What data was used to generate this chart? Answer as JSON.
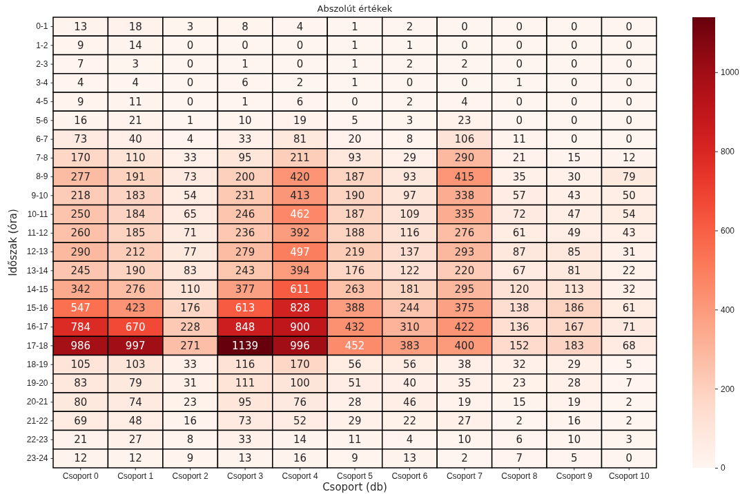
{
  "chart_data": {
    "type": "heatmap",
    "title": "Abszolút értékek",
    "xlabel": "Csoport (db)",
    "ylabel": "Időszak (óra)",
    "categories": [
      "Csoport 0",
      "Csoport 1",
      "Csoport 2",
      "Csoport 3",
      "Csoport 4",
      "Csoport 5",
      "Csoport 6",
      "Csoport 7",
      "Csoport 8",
      "Csoport 9",
      "Csoport 10"
    ],
    "y_categories": [
      "0-1",
      "1-2",
      "2-3",
      "3-4",
      "4-5",
      "5-6",
      "6-7",
      "7-8",
      "8-9",
      "9-10",
      "10-11",
      "11-12",
      "12-13",
      "13-14",
      "14-15",
      "15-16",
      "16-17",
      "17-18",
      "18-19",
      "19-20",
      "20-21",
      "21-22",
      "22-23",
      "23-24"
    ],
    "cells": [
      [
        13,
        18,
        3,
        8,
        4,
        1,
        2,
        0,
        0,
        0,
        0
      ],
      [
        9,
        14,
        0,
        0,
        0,
        1,
        1,
        0,
        0,
        0,
        0
      ],
      [
        7,
        3,
        0,
        1,
        0,
        1,
        2,
        2,
        0,
        0,
        0
      ],
      [
        4,
        4,
        0,
        6,
        2,
        1,
        0,
        0,
        1,
        0,
        0
      ],
      [
        9,
        11,
        0,
        1,
        6,
        0,
        2,
        4,
        0,
        0,
        0
      ],
      [
        16,
        21,
        1,
        10,
        19,
        5,
        3,
        23,
        0,
        0,
        0
      ],
      [
        73,
        40,
        4,
        33,
        81,
        20,
        8,
        106,
        11,
        0,
        0
      ],
      [
        170,
        110,
        33,
        95,
        211,
        93,
        29,
        290,
        21,
        15,
        12
      ],
      [
        277,
        191,
        73,
        200,
        420,
        187,
        93,
        415,
        35,
        30,
        79
      ],
      [
        218,
        183,
        54,
        231,
        413,
        190,
        97,
        338,
        57,
        43,
        50
      ],
      [
        250,
        184,
        65,
        246,
        462,
        187,
        109,
        335,
        72,
        47,
        54
      ],
      [
        260,
        185,
        71,
        236,
        392,
        188,
        116,
        276,
        61,
        49,
        43
      ],
      [
        290,
        212,
        77,
        279,
        497,
        219,
        137,
        293,
        87,
        85,
        31
      ],
      [
        245,
        190,
        83,
        243,
        394,
        176,
        122,
        220,
        67,
        81,
        22
      ],
      [
        342,
        276,
        110,
        377,
        611,
        263,
        181,
        295,
        120,
        113,
        32
      ],
      [
        547,
        423,
        176,
        613,
        828,
        388,
        244,
        375,
        138,
        186,
        61
      ],
      [
        784,
        670,
        228,
        848,
        900,
        432,
        310,
        422,
        136,
        167,
        71
      ],
      [
        986,
        997,
        271,
        1139,
        996,
        452,
        383,
        400,
        152,
        183,
        68
      ],
      [
        105,
        103,
        33,
        116,
        170,
        56,
        56,
        38,
        32,
        29,
        5
      ],
      [
        83,
        79,
        31,
        111,
        100,
        51,
        40,
        35,
        23,
        28,
        7
      ],
      [
        80,
        74,
        23,
        95,
        76,
        28,
        46,
        19,
        15,
        19,
        2
      ],
      [
        69,
        48,
        16,
        73,
        52,
        29,
        22,
        27,
        2,
        16,
        2
      ],
      [
        21,
        27,
        8,
        33,
        14,
        11,
        4,
        10,
        6,
        10,
        3
      ],
      [
        12,
        12,
        9,
        13,
        16,
        9,
        13,
        2,
        7,
        5,
        0
      ]
    ],
    "clim": [
      0,
      1139
    ],
    "cticks": [
      0,
      200,
      400,
      600,
      800,
      1000
    ],
    "data_labels": true
  }
}
